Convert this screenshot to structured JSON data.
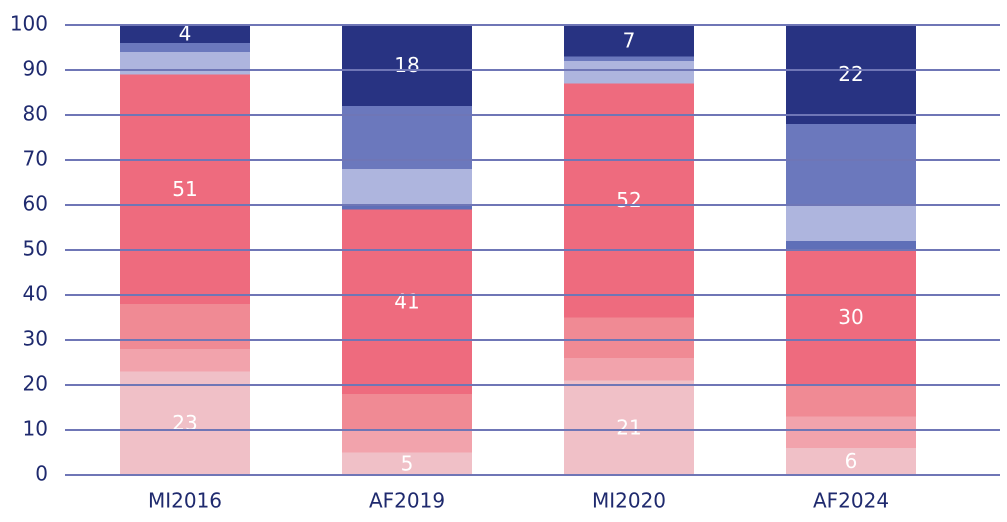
{
  "chart_data": {
    "type": "stacked_bar",
    "categories": [
      "MI2016",
      "AF2019",
      "MI2020",
      "AF2024"
    ],
    "series": [
      {
        "color": "#f0c0c7",
        "values": [
          23,
          5,
          21,
          6
        ],
        "data_labels": true
      },
      {
        "color": "#f2a3ac",
        "values": [
          5,
          5,
          5,
          7
        ]
      },
      {
        "color": "#f08a94",
        "values": [
          10,
          8,
          9,
          7
        ]
      },
      {
        "color": "#ee6b7e",
        "values": [
          51,
          41,
          52,
          30
        ],
        "data_labels": true
      },
      {
        "color": "#5f6fb8",
        "values": [
          0,
          1,
          0,
          2
        ]
      },
      {
        "color": "#aeb5de",
        "values": [
          5,
          8,
          5,
          8
        ]
      },
      {
        "color": "#6b78bd",
        "values": [
          2,
          14,
          1,
          18
        ]
      },
      {
        "color": "#283382",
        "values": [
          4,
          18,
          7,
          22
        ],
        "data_labels": true
      }
    ],
    "ylim": [
      0,
      100
    ],
    "yticks": [
      0,
      10,
      20,
      30,
      40,
      50,
      60,
      70,
      80,
      90,
      100
    ],
    "grid": true
  }
}
